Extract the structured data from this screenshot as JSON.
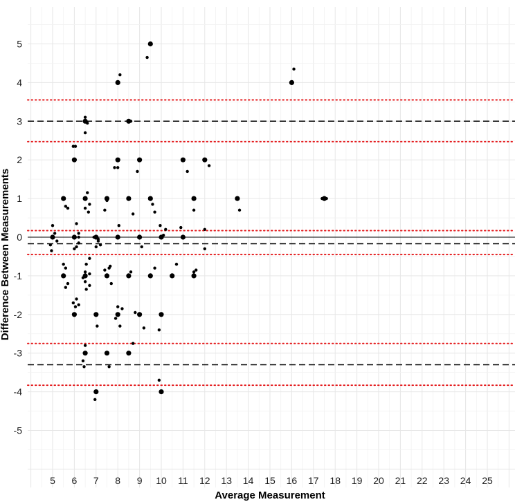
{
  "chart_data": {
    "type": "scatter",
    "title": "",
    "xlabel": "Average Measurement",
    "ylabel": "Difference Between Measurements",
    "xlim": [
      3.5,
      26.0
    ],
    "ylim": [
      -6.2,
      5.8
    ],
    "xticks": [
      5,
      6,
      7,
      8,
      9,
      10,
      11,
      12,
      13,
      14,
      15,
      16,
      17,
      18,
      19,
      20,
      21,
      22,
      23,
      24,
      25
    ],
    "yticks": [
      -5,
      -4,
      -3,
      -2,
      -1,
      0,
      1,
      2,
      3,
      4,
      5
    ],
    "grid": true,
    "reference_lines": [
      {
        "label": "zero",
        "y": 0,
        "style": "solid",
        "color": "#000000"
      },
      {
        "label": "mean difference",
        "y": -0.17,
        "style": "dashed",
        "color": "#000000"
      },
      {
        "label": "mean difference lower CI",
        "y": -0.45,
        "style": "dotted",
        "color": "#e41a1c"
      },
      {
        "label": "mean difference upper CI",
        "y": 0.17,
        "style": "dotted",
        "color": "#e41a1c"
      },
      {
        "label": "upper limit of agreement",
        "y": 3.0,
        "style": "dashed",
        "color": "#000000"
      },
      {
        "label": "upper LoA upper CI",
        "y": 3.55,
        "style": "dotted",
        "color": "#e41a1c"
      },
      {
        "label": "upper LoA lower CI",
        "y": 2.47,
        "style": "dotted",
        "color": "#e41a1c"
      },
      {
        "label": "lower limit of agreement",
        "y": -3.3,
        "style": "dashed",
        "color": "#000000"
      },
      {
        "label": "lower LoA upper CI",
        "y": -2.75,
        "style": "dotted",
        "color": "#e41a1c"
      },
      {
        "label": "lower LoA lower CI",
        "y": -3.83,
        "style": "dotted",
        "color": "#e41a1c"
      }
    ],
    "points_exact": [
      [
        5.0,
        0
      ],
      [
        5.5,
        1
      ],
      [
        5.5,
        -1
      ],
      [
        6.0,
        2
      ],
      [
        6.0,
        0
      ],
      [
        6.0,
        -2
      ],
      [
        6.5,
        3
      ],
      [
        6.5,
        1
      ],
      [
        6.5,
        -1
      ],
      [
        6.5,
        -3
      ],
      [
        7.0,
        -2
      ],
      [
        7.0,
        -4
      ],
      [
        7.0,
        0
      ],
      [
        7.5,
        1
      ],
      [
        7.5,
        -1
      ],
      [
        7.5,
        -3
      ],
      [
        8.0,
        4
      ],
      [
        8.0,
        2
      ],
      [
        8.0,
        0
      ],
      [
        8.0,
        -2
      ],
      [
        8.5,
        3
      ],
      [
        8.5,
        1
      ],
      [
        8.5,
        -1
      ],
      [
        8.5,
        -3
      ],
      [
        9.0,
        2
      ],
      [
        9.0,
        0
      ],
      [
        9.0,
        -2
      ],
      [
        9.5,
        5
      ],
      [
        9.5,
        1
      ],
      [
        9.5,
        -1
      ],
      [
        10.0,
        0
      ],
      [
        10.0,
        -2
      ],
      [
        10.0,
        -4
      ],
      [
        10.5,
        -1
      ],
      [
        11.0,
        2
      ],
      [
        11.0,
        0
      ],
      [
        11.5,
        1
      ],
      [
        11.5,
        -1
      ],
      [
        12.0,
        2
      ],
      [
        13.5,
        1
      ],
      [
        16.0,
        4
      ],
      [
        17.5,
        1
      ]
    ],
    "points_jittered": [
      [
        4.9,
        -0.2
      ],
      [
        5.0,
        0.3
      ],
      [
        5.1,
        0.1
      ],
      [
        4.95,
        -0.35
      ],
      [
        5.2,
        -0.1
      ],
      [
        5.6,
        0.8
      ],
      [
        5.7,
        0.75
      ],
      [
        5.5,
        -0.7
      ],
      [
        5.6,
        -0.8
      ],
      [
        5.7,
        -1.2
      ],
      [
        5.6,
        -1.3
      ],
      [
        5.95,
        2.35
      ],
      [
        6.05,
        2.35
      ],
      [
        6.1,
        0.35
      ],
      [
        6.0,
        -0.3
      ],
      [
        6.1,
        -0.25
      ],
      [
        6.2,
        -0.15
      ],
      [
        6.2,
        0.1
      ],
      [
        5.95,
        -1.7
      ],
      [
        6.1,
        -1.6
      ],
      [
        6.05,
        -1.8
      ],
      [
        6.2,
        -1.75
      ],
      [
        6.2,
        0.0
      ],
      [
        6.5,
        3.1
      ],
      [
        6.6,
        2.95
      ],
      [
        6.5,
        2.7
      ],
      [
        6.6,
        1.15
      ],
      [
        6.5,
        0.75
      ],
      [
        6.7,
        0.85
      ],
      [
        6.65,
        0.65
      ],
      [
        6.55,
        -0.7
      ],
      [
        6.5,
        -0.9
      ],
      [
        6.7,
        -0.95
      ],
      [
        6.4,
        -1.05
      ],
      [
        6.5,
        -1.15
      ],
      [
        6.55,
        -1.35
      ],
      [
        6.7,
        -1.25
      ],
      [
        6.5,
        -2.8
      ],
      [
        6.4,
        -3.2
      ],
      [
        6.45,
        -3.35
      ],
      [
        6.7,
        -0.55
      ],
      [
        6.9,
        0.0
      ],
      [
        7.1,
        -0.1
      ],
      [
        7.2,
        -0.2
      ],
      [
        7.0,
        -0.25
      ],
      [
        7.1,
        -0.05
      ],
      [
        7.05,
        -2.3
      ],
      [
        6.95,
        -4.2
      ],
      [
        7.4,
        0.7
      ],
      [
        7.5,
        0.95
      ],
      [
        7.6,
        -0.8
      ],
      [
        7.4,
        -0.85
      ],
      [
        7.5,
        -1.0
      ],
      [
        7.7,
        -1.2
      ],
      [
        7.6,
        -3.35
      ],
      [
        7.65,
        -0.75
      ],
      [
        7.85,
        1.8
      ],
      [
        8.0,
        1.8
      ],
      [
        8.1,
        4.2
      ],
      [
        8.05,
        0.3
      ],
      [
        8.0,
        -1.8
      ],
      [
        7.9,
        -2.1
      ],
      [
        8.1,
        -2.3
      ],
      [
        8.2,
        -1.85
      ],
      [
        8.6,
        3.0
      ],
      [
        8.7,
        0.6
      ],
      [
        8.6,
        -0.9
      ],
      [
        8.7,
        -2.75
      ],
      [
        8.9,
        1.7
      ],
      [
        8.8,
        -1.95
      ],
      [
        9.1,
        -0.25
      ],
      [
        9.2,
        -2.35
      ],
      [
        9.35,
        4.65
      ],
      [
        9.6,
        0.85
      ],
      [
        9.7,
        0.65
      ],
      [
        9.7,
        -0.8
      ],
      [
        9.9,
        -3.7
      ],
      [
        9.9,
        -2.4
      ],
      [
        9.95,
        0.3
      ],
      [
        10.2,
        0.2
      ],
      [
        10.1,
        0.05
      ],
      [
        10.7,
        -0.7
      ],
      [
        10.9,
        0.25
      ],
      [
        11.2,
        1.7
      ],
      [
        11.5,
        -0.9
      ],
      [
        11.6,
        -0.85
      ],
      [
        11.5,
        0.7
      ],
      [
        12.0,
        0.2
      ],
      [
        12.2,
        1.85
      ],
      [
        12.0,
        -0.3
      ],
      [
        13.6,
        0.7
      ],
      [
        16.1,
        4.35
      ],
      [
        17.4,
        1.0
      ],
      [
        17.6,
        1.0
      ]
    ]
  }
}
